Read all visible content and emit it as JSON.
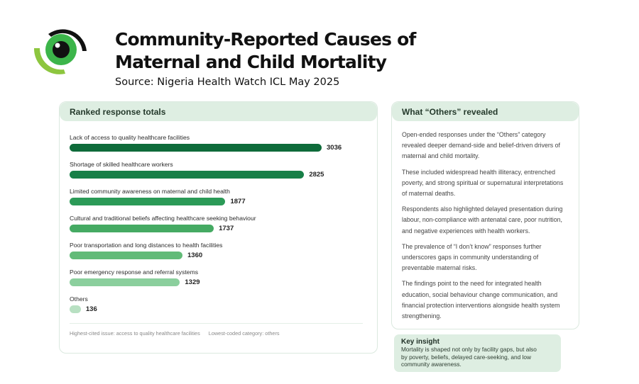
{
  "header": {
    "title_line1": "Community-Reported Causes of",
    "title_line2": "Maternal and Child Mortality",
    "source": "Source: Nigeria Health Watch ICL May 2025"
  },
  "left_card": {
    "title": "Ranked response totals",
    "footer_highest": "Highest-cited issue: access to quality healthcare facilities",
    "footer_lowest": "Lowest-coded category: others"
  },
  "chart_data": {
    "type": "bar",
    "orientation": "horizontal",
    "categories": [
      "Lack of access to quality healthcare facilities",
      "Shortage of skilled healthcare workers",
      "Limited community awareness on maternal and child health",
      "Cultural and traditional beliefs affecting healthcare seeking behaviour",
      "Poor transportation and long distances to health facilities",
      "Poor emergency response and referral systems",
      "Others"
    ],
    "values": [
      3036,
      2825,
      1877,
      1737,
      1360,
      1329,
      136
    ],
    "colors": [
      "#0e6b3a",
      "#177f47",
      "#2b9a57",
      "#45aa63",
      "#62bb78",
      "#8bcf9d",
      "#b8e0c2"
    ],
    "title": "Ranked response totals",
    "grid": false,
    "xlim": [
      0,
      3036
    ]
  },
  "right_card": {
    "title": "What “Others” revealed",
    "paragraphs": [
      "Open-ended responses under the “Others” category revealed deeper demand-side and belief-driven drivers of maternal and child mortality.",
      "These included widespread health illiteracy, entrenched poverty, and strong spiritual or supernatural interpretations of maternal deaths.",
      "Respondents also highlighted delayed presentation during labour, non-compliance with antenatal care, poor nutrition, and negative experiences with health workers.",
      "The prevalence of “I don’t know” responses further underscores gaps in community understanding of preventable maternal risks.",
      "The findings point to the need for integrated health education, social behaviour change communication, and financial protection interventions alongside health system strengthening."
    ]
  },
  "insight": {
    "title": "Key insight",
    "text": "Mortality is shaped not only by facility gaps, but also by poverty, beliefs, delayed care-seeking, and low community awareness."
  },
  "colors": {
    "accent": "#0e6b3a",
    "panel": "#deeee2",
    "logo_green": "#3cb54a",
    "logo_lime": "#8dc63f"
  }
}
